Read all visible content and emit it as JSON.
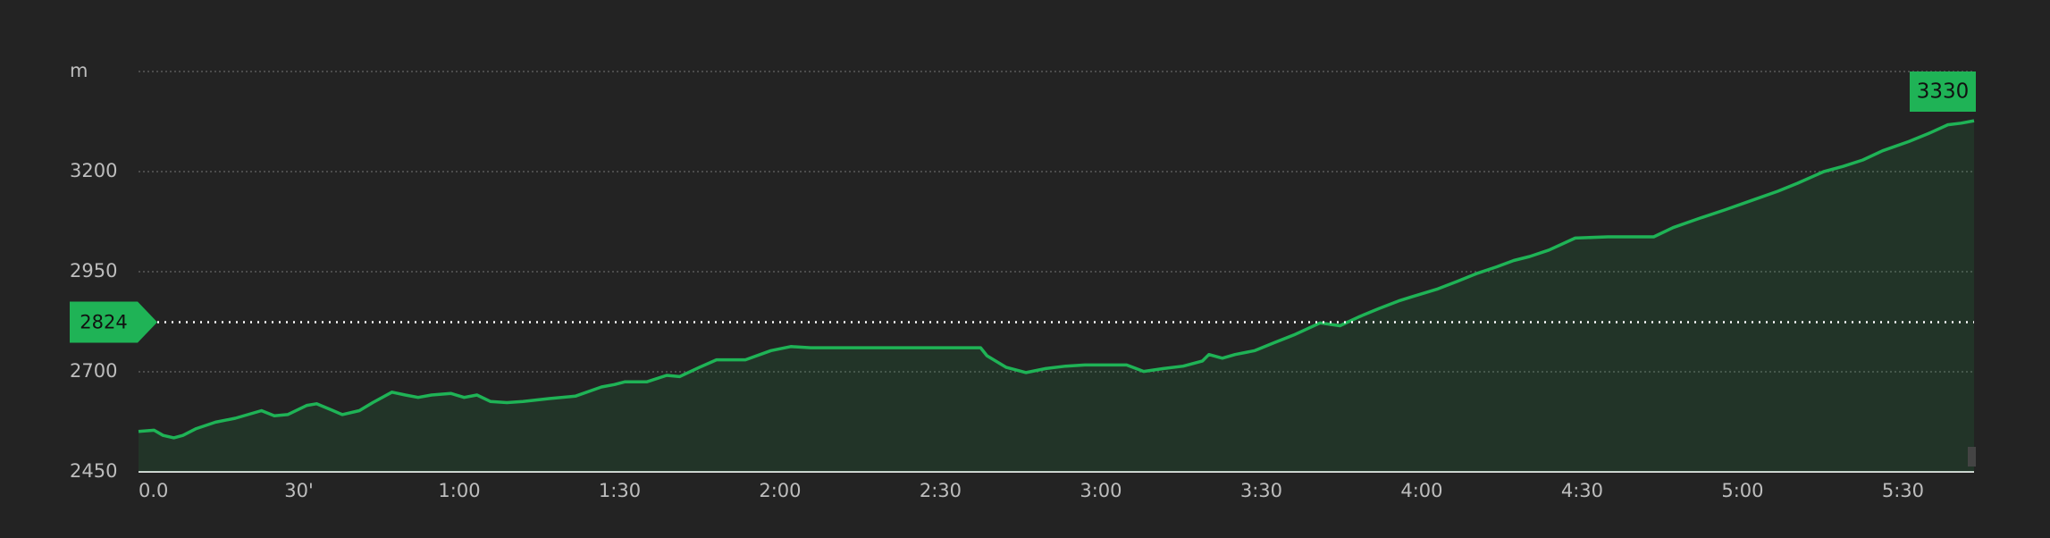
{
  "chart_data": {
    "type": "area",
    "x": [
      0,
      2.9,
      4.6,
      6.6,
      8.3,
      10.8,
      14.4,
      18.1,
      23.0,
      25.4,
      27.9,
      31.5,
      33.3,
      36.4,
      38.1,
      41.3,
      43.8,
      47.4,
      49.9,
      52.3,
      54.8,
      58.4,
      60.9,
      63.3,
      65.8,
      68.9,
      71.9,
      76.8,
      81.7,
      86.6,
      89.0,
      91.0,
      95.1,
      98.8,
      101.2,
      104.9,
      108.1,
      113.5,
      118.3,
      122.0,
      125.7,
      133.0,
      145.2,
      157.5,
      158.7,
      162.3,
      166.0,
      169.7,
      173.4,
      177.0,
      184.8,
      188.0,
      191.7,
      195.4,
      199.0,
      200.2,
      202.7,
      205.1,
      208.8,
      212.5,
      216.1,
      221.0,
      224.7,
      228.4,
      232.0,
      235.7,
      238.1,
      243.0,
      246.7,
      250.4,
      254.0,
      257.2,
      260.2,
      263.8,
      268.7,
      274.8,
      283.4,
      287.0,
      291.9,
      296.8,
      301.7,
      306.6,
      310.3,
      315.2,
      318.8,
      322.5,
      326.2,
      331.1,
      334.8,
      338.4,
      340.9,
      343.3
    ],
    "series": [
      {
        "color": "#1fb356",
        "values": [
          2551,
          2554,
          2541,
          2535,
          2541,
          2558,
          2574,
          2584,
          2603,
          2590,
          2593,
          2616,
          2620,
          2603,
          2593,
          2603,
          2623,
          2649,
          2642,
          2636,
          2642,
          2646,
          2636,
          2642,
          2626,
          2623,
          2626,
          2633,
          2639,
          2662,
          2668,
          2675,
          2675,
          2691,
          2688,
          2711,
          2730,
          2730,
          2753,
          2763,
          2760,
          2760,
          2760,
          2760,
          2740,
          2711,
          2698,
          2708,
          2714,
          2717,
          2717,
          2701,
          2708,
          2714,
          2727,
          2743,
          2734,
          2743,
          2753,
          2773,
          2792,
          2822,
          2815,
          2838,
          2858,
          2877,
          2887,
          2907,
          2926,
          2946,
          2962,
          2978,
          2988,
          3004,
          3034,
          3037,
          3037,
          3060,
          3083,
          3105,
          3128,
          3151,
          3171,
          3200,
          3213,
          3229,
          3252,
          3275,
          3295,
          3317,
          3321,
          3327
        ]
      }
    ],
    "xlim": [
      0,
      343.3
    ],
    "xticks": [
      {
        "value": 0,
        "label": "0.0"
      },
      {
        "value": 30,
        "label": "30'"
      },
      {
        "value": 60,
        "label": "1:00"
      },
      {
        "value": 90,
        "label": "1:30"
      },
      {
        "value": 120,
        "label": "2:00"
      },
      {
        "value": 150,
        "label": "2:30"
      },
      {
        "value": 180,
        "label": "3:00"
      },
      {
        "value": 210,
        "label": "3:30"
      },
      {
        "value": 240,
        "label": "4:00"
      },
      {
        "value": 270,
        "label": "4:30"
      },
      {
        "value": 300,
        "label": "5:00"
      },
      {
        "value": 330,
        "label": "5:30"
      }
    ],
    "ylim": [
      2450,
      3450
    ],
    "yticks": [
      2450,
      2700,
      2950,
      3200,
      {
        "value": 3450,
        "label": "m"
      }
    ],
    "grid": true,
    "reference_line": 2824,
    "end_label": 3330
  }
}
